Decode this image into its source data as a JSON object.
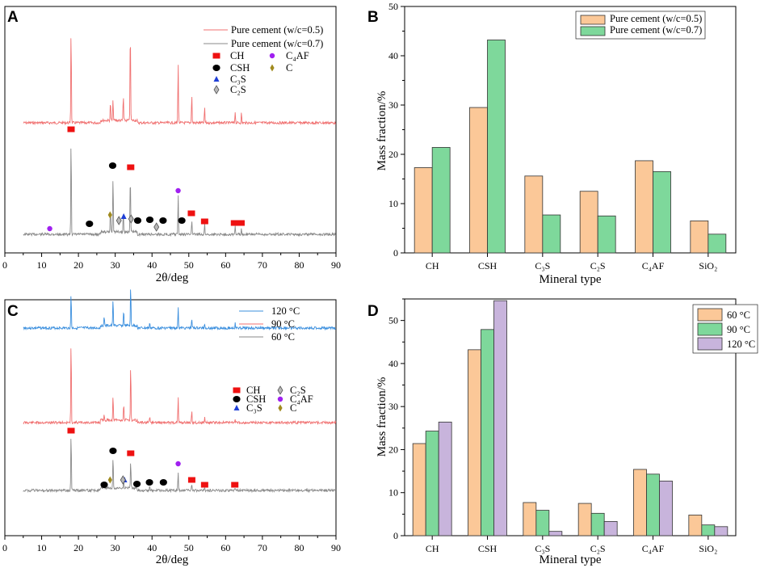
{
  "chart_data": [
    {
      "panel": "A",
      "type": "line",
      "title": "",
      "xlabel": "2θ/deg",
      "ylabel": "",
      "xlim": [
        0,
        90
      ],
      "xticks": [
        "0",
        "10",
        "20",
        "30",
        "40",
        "50",
        "60",
        "70",
        "80",
        "90"
      ],
      "series": [
        {
          "name": "Pure cement (w/c=0.5)",
          "color": "#f07070"
        },
        {
          "name": "Pure cement (w/c=0.7)",
          "color": "#8a8a8a"
        }
      ],
      "peaks": [
        {
          "x": 18.0,
          "h05": 1.0,
          "h07": 1.0
        },
        {
          "x": 28.7,
          "h05": 0.2,
          "h07": 0.25
        },
        {
          "x": 29.4,
          "h05": 0.22,
          "h07": 0.6
        },
        {
          "x": 32.2,
          "h05": 0.26,
          "h07": 0.2
        },
        {
          "x": 34.1,
          "h05": 1.0,
          "h07": 0.6
        },
        {
          "x": 47.1,
          "h05": 0.63,
          "h07": 0.4
        },
        {
          "x": 50.8,
          "h05": 0.3,
          "h07": 0.16
        },
        {
          "x": 54.3,
          "h05": 0.16,
          "h07": 0.1
        },
        {
          "x": 62.6,
          "h05": 0.12,
          "h07": 0.08
        },
        {
          "x": 64.3,
          "h05": 0.1,
          "h07": 0.07
        }
      ],
      "markers": [
        {
          "phase": "CH",
          "x": [
            18.0,
            34.2,
            50.7,
            54.3,
            62.4,
            64.2
          ]
        },
        {
          "phase": "CSH",
          "x": [
            23.0,
            29.3,
            36.1,
            39.4,
            43.0,
            48.1
          ]
        },
        {
          "phase": "C3S",
          "x": [
            32.3
          ]
        },
        {
          "phase": "C2S",
          "x": [
            31.0,
            34.3,
            41.2
          ]
        },
        {
          "phase": "C4AF",
          "x": [
            12.2,
            47.1
          ]
        },
        {
          "phase": "C",
          "x": [
            28.6
          ]
        }
      ],
      "legend_phases": [
        {
          "key": "CH",
          "label": "CH"
        },
        {
          "key": "CSH",
          "label": "CSH"
        },
        {
          "key": "C3S",
          "label": "C₃S"
        },
        {
          "key": "C2S",
          "label": "C₂S"
        },
        {
          "key": "C4AF",
          "label": "C₄AF"
        },
        {
          "key": "C",
          "label": "C"
        }
      ]
    },
    {
      "panel": "B",
      "type": "bar",
      "xlabel": "Mineral type",
      "ylabel": "Mass fraction/%",
      "ylim": [
        0,
        50
      ],
      "yticks": [
        "0",
        "10",
        "20",
        "30",
        "40",
        "50"
      ],
      "categories": [
        "CH",
        "CSH",
        "C₃S",
        "C₂S",
        "C₄AF",
        "SiO₂"
      ],
      "series": [
        {
          "name": "Pure cement (w/c=0.5)",
          "color": "#fbc898",
          "values": [
            17.3,
            29.5,
            15.6,
            12.5,
            18.7,
            6.5
          ]
        },
        {
          "name": "Pure cement (w/c=0.7)",
          "color": "#7ed89b",
          "values": [
            21.4,
            43.2,
            7.7,
            7.5,
            16.5,
            3.8
          ]
        }
      ]
    },
    {
      "panel": "C",
      "type": "line",
      "xlabel": "2θ/deg",
      "ylabel": "",
      "xlim": [
        0,
        90
      ],
      "xticks": [
        "0",
        "10",
        "20",
        "30",
        "40",
        "50",
        "60",
        "70",
        "80",
        "90"
      ],
      "series": [
        {
          "name": "120 °C",
          "color": "#3b8fde"
        },
        {
          "name": "90 °C",
          "color": "#f07070"
        },
        {
          "name": "60 °C",
          "color": "#8a8a8a"
        }
      ],
      "peaks": [
        {
          "x": 18.0,
          "h": [
            0.4,
            1.0,
            1.0
          ]
        },
        {
          "x": 27.0,
          "h": [
            0.12,
            0.06,
            0.08
          ]
        },
        {
          "x": 29.4,
          "h": [
            0.32,
            0.3,
            0.55
          ]
        },
        {
          "x": 32.3,
          "h": [
            0.18,
            0.2,
            0.14
          ]
        },
        {
          "x": 34.2,
          "h": [
            0.45,
            0.7,
            0.48
          ]
        },
        {
          "x": 39.4,
          "h": [
            0.06,
            0.06,
            0.08
          ]
        },
        {
          "x": 47.1,
          "h": [
            0.25,
            0.3,
            0.3
          ]
        },
        {
          "x": 50.8,
          "h": [
            0.12,
            0.16,
            0.1
          ]
        },
        {
          "x": 54.3,
          "h": [
            0.05,
            0.06,
            0.05
          ]
        },
        {
          "x": 62.6,
          "h": [
            0.05,
            0.05,
            0.04
          ]
        }
      ],
      "markers": [
        {
          "phase": "CH",
          "x": [
            18.0,
            34.2,
            50.8,
            54.3,
            62.5
          ]
        },
        {
          "phase": "CSH",
          "x": [
            27.0,
            29.4,
            35.9,
            39.3,
            43.1
          ]
        },
        {
          "phase": "C3S",
          "x": [
            32.5
          ]
        },
        {
          "phase": "C2S",
          "x": [
            32.1
          ]
        },
        {
          "phase": "C4AF",
          "x": [
            47.1
          ]
        },
        {
          "phase": "C",
          "x": [
            28.6
          ]
        }
      ],
      "legend_phases": [
        {
          "key": "CH",
          "label": "CH"
        },
        {
          "key": "C2S",
          "label": "C₂S"
        },
        {
          "key": "CSH",
          "label": "CSH"
        },
        {
          "key": "C4AF",
          "label": "C₄AF"
        },
        {
          "key": "C3S",
          "label": "C₃S"
        },
        {
          "key": "C",
          "label": "C"
        }
      ]
    },
    {
      "panel": "D",
      "type": "bar",
      "xlabel": "Mineral type",
      "ylabel": "Mass fraction/%",
      "ylim": [
        0,
        55
      ],
      "yticks": [
        "0",
        "10",
        "20",
        "30",
        "40",
        "50"
      ],
      "categories": [
        "CH",
        "CSH",
        "C₃S",
        "C₂S",
        "C₄AF",
        "SiO₂"
      ],
      "series": [
        {
          "name": "60 °C",
          "color": "#fbc898",
          "values": [
            21.4,
            43.2,
            7.7,
            7.5,
            15.4,
            4.8
          ]
        },
        {
          "name": "90 °C",
          "color": "#7ed89b",
          "values": [
            24.3,
            47.9,
            5.9,
            5.2,
            14.3,
            2.5
          ]
        },
        {
          "name": "120 °C",
          "color": "#c8b4dc",
          "values": [
            26.4,
            54.6,
            1.0,
            3.3,
            12.7,
            2.1
          ]
        }
      ]
    }
  ],
  "panel_labels": [
    "A",
    "B",
    "C",
    "D"
  ],
  "colors": {
    "CH": "#ee1111",
    "CSH": "#000000",
    "C3S": "#1f3fd6",
    "C2S": "#b8b8b8",
    "C4AF": "#a020f0",
    "C": "#a08a1e"
  }
}
